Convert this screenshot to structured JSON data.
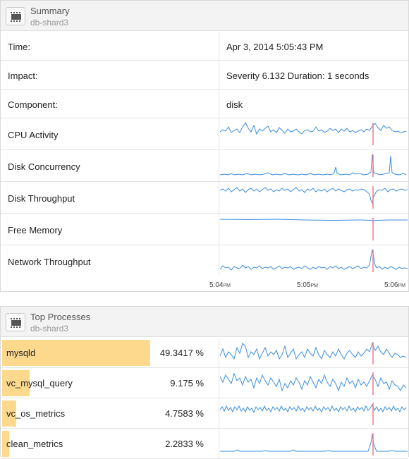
{
  "summary": {
    "title": "Summary",
    "subtitle": "db-shard3",
    "rows": [
      {
        "label": "Time:",
        "value": "Apr 3, 2014 5:05:43 PM"
      },
      {
        "label": "Impact:",
        "value": "Severity 6.132 Duration: 1 seconds"
      },
      {
        "label": "Component:",
        "value": "disk"
      }
    ],
    "charts": [
      {
        "label": "CPU Activity"
      },
      {
        "label": "Disk Concurrency"
      },
      {
        "label": "Disk Throughput"
      },
      {
        "label": "Free Memory"
      },
      {
        "label": "Network Throughput"
      }
    ],
    "axis": [
      {
        "time": "5:04",
        "suffix": "PM"
      },
      {
        "time": "5:05",
        "suffix": "PM"
      },
      {
        "time": "5:06",
        "suffix": "PM"
      }
    ]
  },
  "top_processes": {
    "title": "Top Processes",
    "subtitle": "db-shard3",
    "items": [
      {
        "name": "mysqld",
        "percent": "49.3417 %",
        "share": 49.3417
      },
      {
        "name": "vc_mysql_query",
        "percent": "9.175 %",
        "share": 9.175
      },
      {
        "name": "vc_os_metrics",
        "percent": "4.7583 %",
        "share": 4.7583
      },
      {
        "name": "clean_metrics",
        "percent": "2.2833 %",
        "share": 2.2833
      }
    ]
  },
  "colors": {
    "sparkline": "#3b8ee0",
    "event_marker": "#f07a8a",
    "process_bar": "#fcd98c"
  }
}
